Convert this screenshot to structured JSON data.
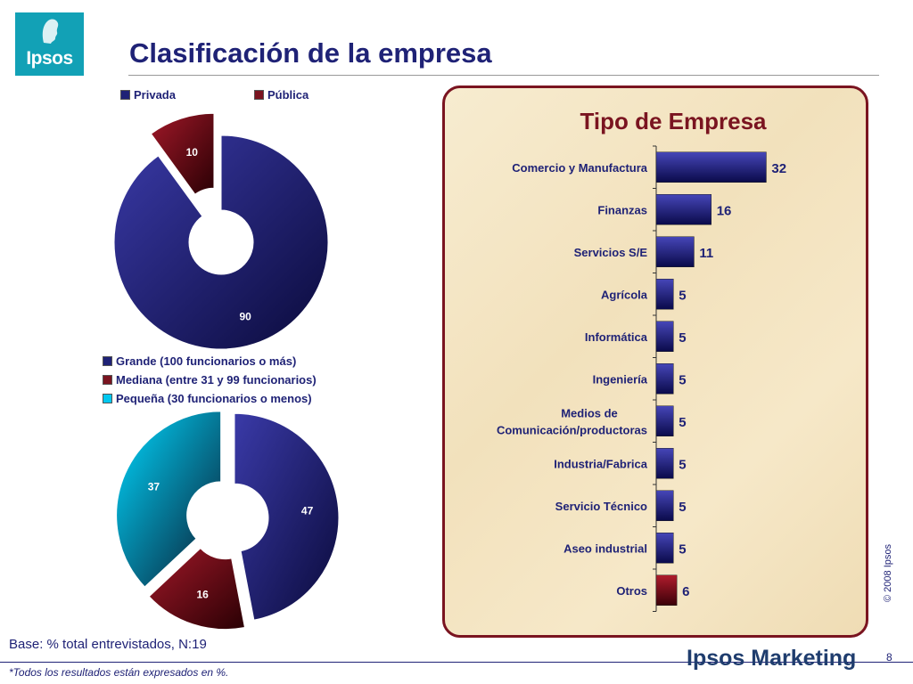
{
  "header": {
    "logo_text": "Ipsos",
    "title": "Clasificación de la empresa"
  },
  "colors": {
    "navy": "#1f2276",
    "maroon": "#7a1420",
    "cyan": "#00c8f0",
    "teal_logo": "#12a1b6"
  },
  "chart_data": [
    {
      "type": "pie",
      "labels": [
        "Privada",
        "Pública"
      ],
      "values": [
        90,
        10
      ],
      "legend": [
        "Privada",
        "Pública"
      ],
      "legend_position": "top",
      "donut": true
    },
    {
      "type": "pie",
      "labels": [
        "Grande (100 funcionarios o más)",
        "Mediana (entre 31 y 99 funcionarios)",
        "Pequeña (30 funcionarios o menos)"
      ],
      "values": [
        47,
        16,
        37
      ],
      "legend": [
        "Grande (100 funcionarios o más)",
        "Mediana (entre 31 y 99 funcionarios)",
        "Pequeña (30 funcionarios o menos)"
      ],
      "legend_position": "top",
      "donut": true
    },
    {
      "type": "bar",
      "orientation": "horizontal",
      "title": "Tipo de Empresa",
      "categories": [
        "Comercio y Manufactura",
        "Finanzas",
        "Servicios S/E",
        "Agrícola",
        "Informática",
        "Ingeniería",
        "Medios de Comunicación/productoras",
        "Industria/Fabrica",
        "Servicio Técnico",
        "Aseo industrial",
        "Otros"
      ],
      "category_lines": [
        [
          "Comercio y Manufactura"
        ],
        [
          "Finanzas"
        ],
        [
          "Servicios S/E"
        ],
        [
          "Agrícola"
        ],
        [
          "Informática"
        ],
        [
          "Ingeniería"
        ],
        [
          "Medios de",
          "Comunicación/productoras"
        ],
        [
          "Industria/Fabrica"
        ],
        [
          "Servicio Técnico"
        ],
        [
          "Aseo industrial"
        ],
        [
          "Otros"
        ]
      ],
      "values": [
        32,
        16,
        11,
        5,
        5,
        5,
        5,
        5,
        5,
        5,
        6
      ],
      "bar_colors": [
        "navy",
        "navy",
        "navy",
        "navy",
        "navy",
        "navy",
        "navy",
        "navy",
        "navy",
        "navy",
        "maroon"
      ],
      "xlim": [
        0,
        35
      ]
    }
  ],
  "footer": {
    "base": "Base: % total entrevistados, N:19",
    "note": "*Todos los resultados están expresados en %.",
    "brand": "Ipsos Marketing",
    "page": "8",
    "copyright": "© 2008 Ipsos"
  }
}
